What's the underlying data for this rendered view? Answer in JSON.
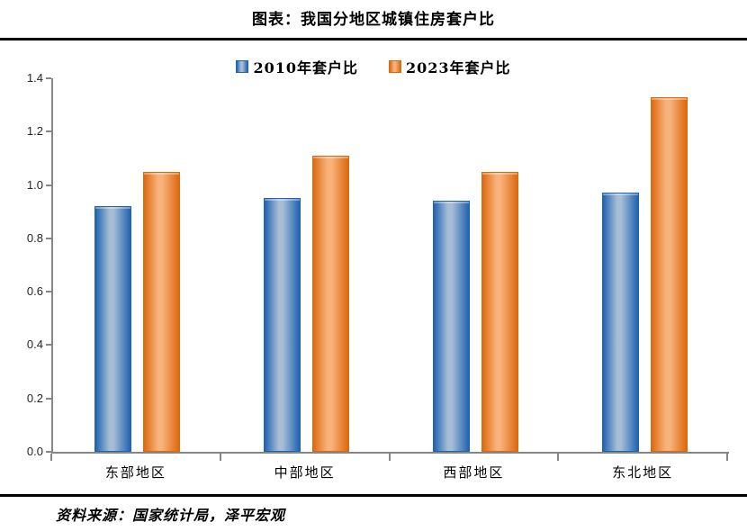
{
  "page": {
    "title": "图表：我国分地区城镇住房套户比",
    "source": "资料来源：国家统计局，泽平宏观"
  },
  "colors": {
    "axis": "#868686",
    "rule": "#000000",
    "blue_edge": "#2063b1",
    "blue_center": "#a6bdd5",
    "orange_edge": "#dc690f",
    "orange_center": "#f8b27b"
  },
  "chart_data": {
    "type": "bar",
    "title": "图表：我国分地区城镇住房套户比",
    "categories": [
      "东部地区",
      "中部地区",
      "西部地区",
      "东北地区"
    ],
    "series": [
      {
        "name": "2010年套户比",
        "values": [
          0.92,
          0.95,
          0.94,
          0.97
        ],
        "edge_color": "#2063b1",
        "center_color": "#a6bdd5"
      },
      {
        "name": "2023年套户比",
        "values": [
          1.05,
          1.11,
          1.05,
          1.33
        ],
        "edge_color": "#dc690f",
        "center_color": "#f8b27b"
      }
    ],
    "xlabel": "",
    "ylabel": "",
    "ylim": [
      0,
      1.4
    ],
    "yticks": [
      0.0,
      0.2,
      0.4,
      0.6,
      0.8,
      1.0,
      1.2,
      1.4
    ],
    "ytick_labels": [
      "0.0",
      "0.2",
      "0.4",
      "0.6",
      "0.8",
      "1.0",
      "1.2",
      "1.4"
    ],
    "grid": false,
    "legend_position": "top",
    "source": "资料来源：国家统计局，泽平宏观"
  }
}
